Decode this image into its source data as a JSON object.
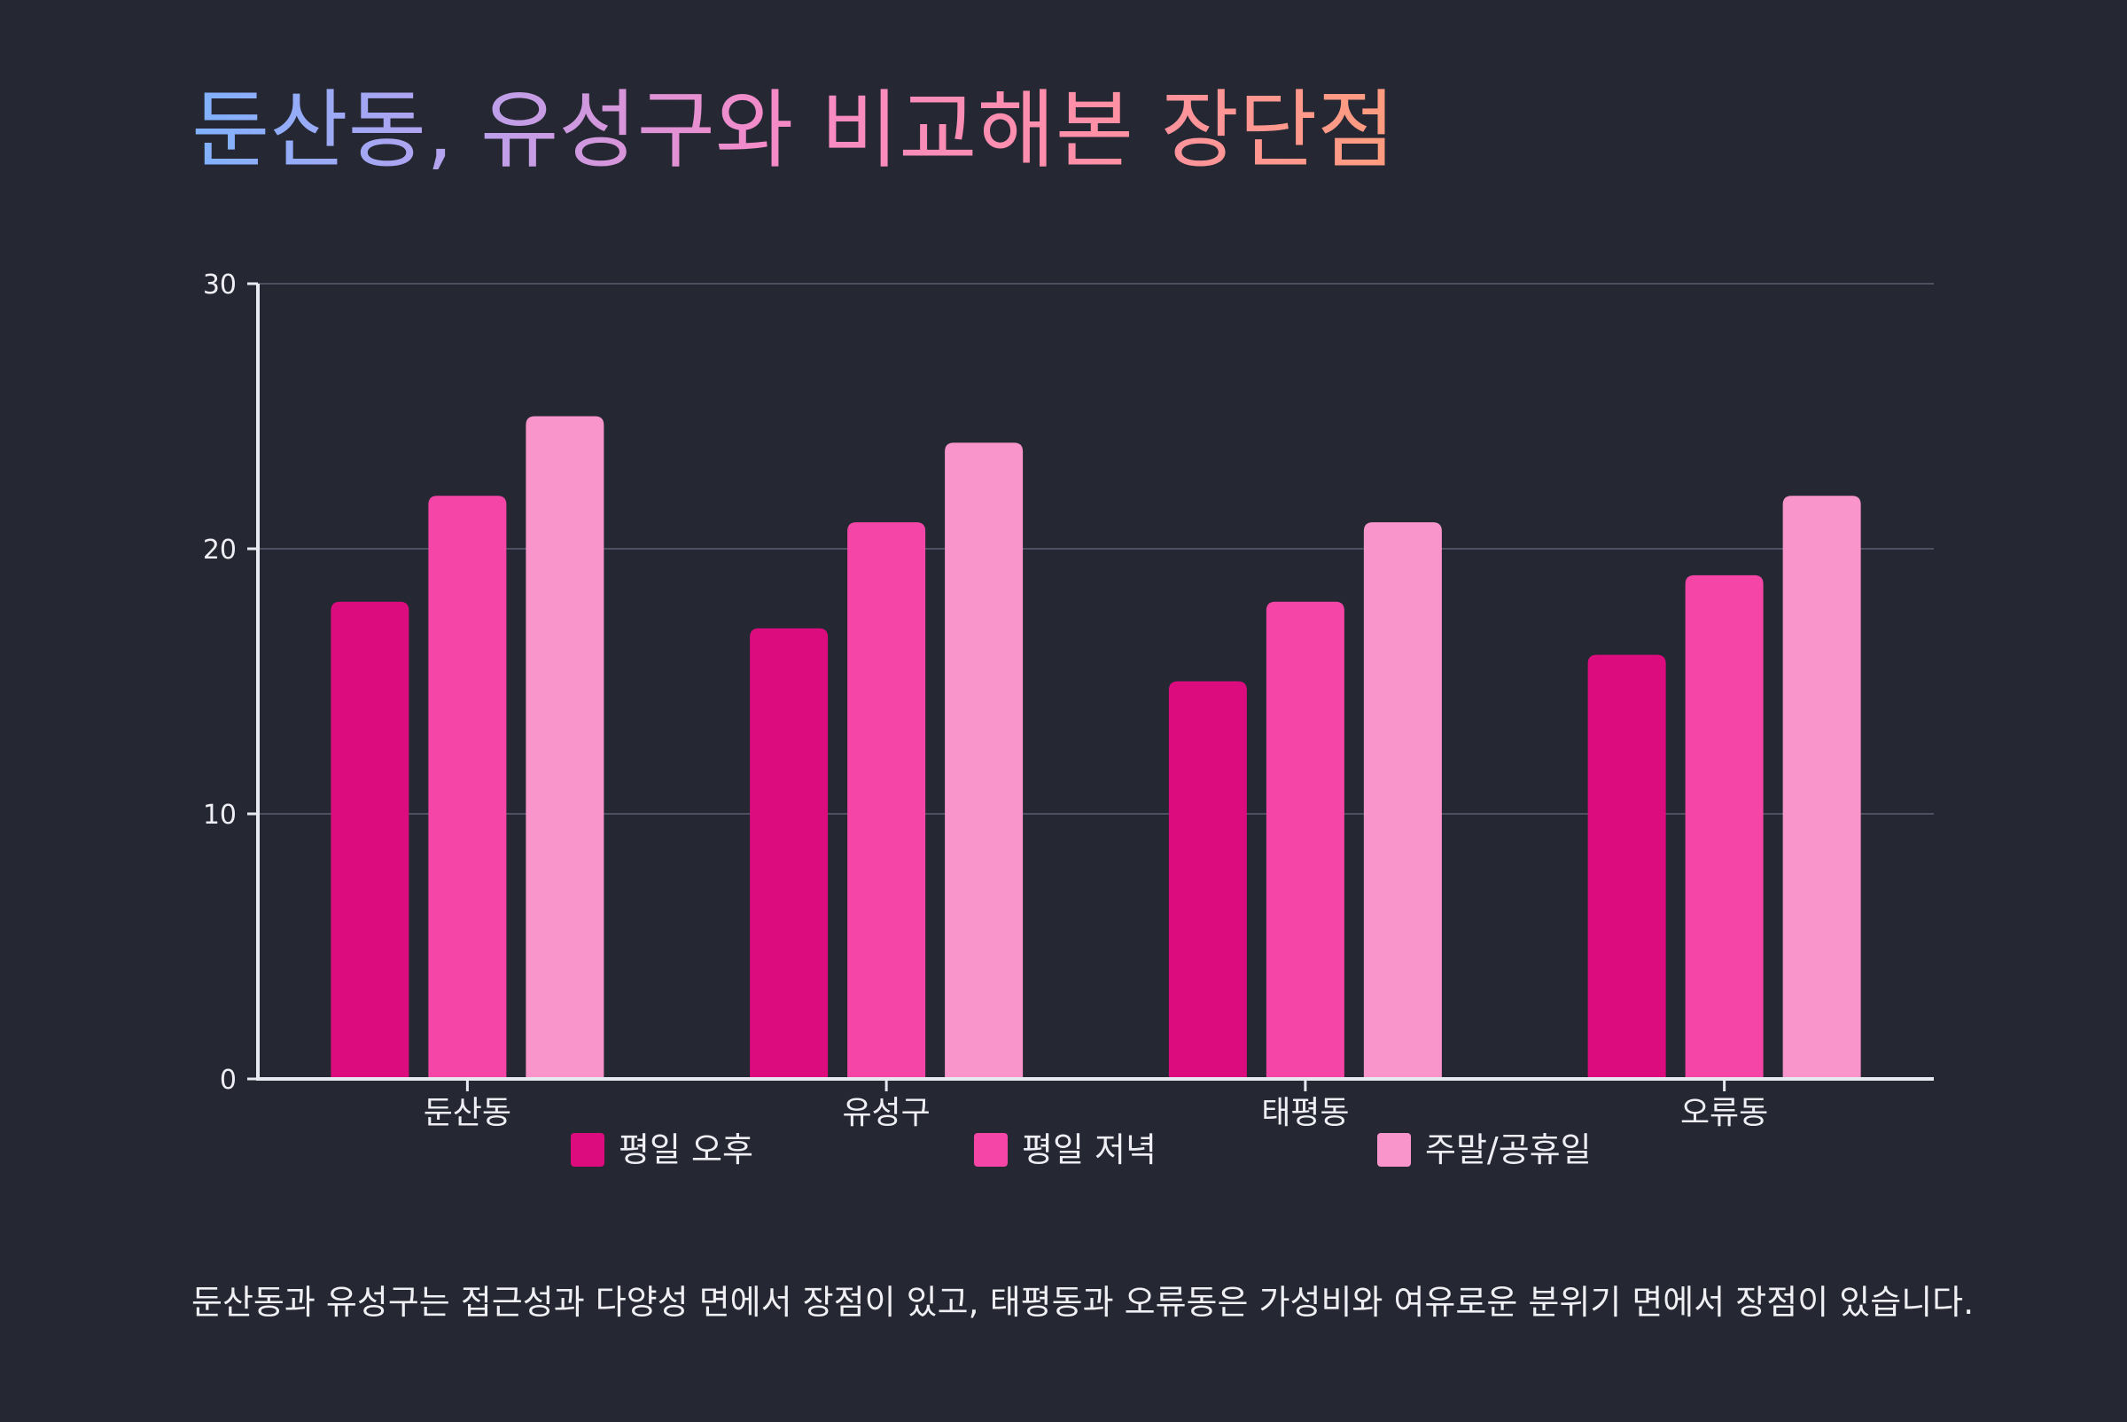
{
  "title": "둔산동, 유성구와 비교해본 장단점",
  "caption": "둔산동과 유성구는 접근성과 다양성 면에서 장점이 있고, 태평동과 오류동은 가성비와 여유로운 분위기 면에서 장점이 있습니다.",
  "chart_data": {
    "type": "bar",
    "categories": [
      "둔산동",
      "유성구",
      "태평동",
      "오류동"
    ],
    "series": [
      {
        "name": "평일 오후",
        "color": "#dc0b7e",
        "values": [
          18,
          17,
          15,
          16
        ]
      },
      {
        "name": "평일 저녁",
        "color": "#f545a6",
        "values": [
          22,
          21,
          18,
          19
        ]
      },
      {
        "name": "주말/공휴일",
        "color": "#fa95cc",
        "values": [
          25,
          24,
          21,
          22
        ]
      }
    ],
    "ylim": [
      0,
      30
    ],
    "yticks": [
      0,
      10,
      20,
      30
    ],
    "grid": true,
    "legend_position": "bottom",
    "xlabel": "",
    "ylabel": ""
  }
}
